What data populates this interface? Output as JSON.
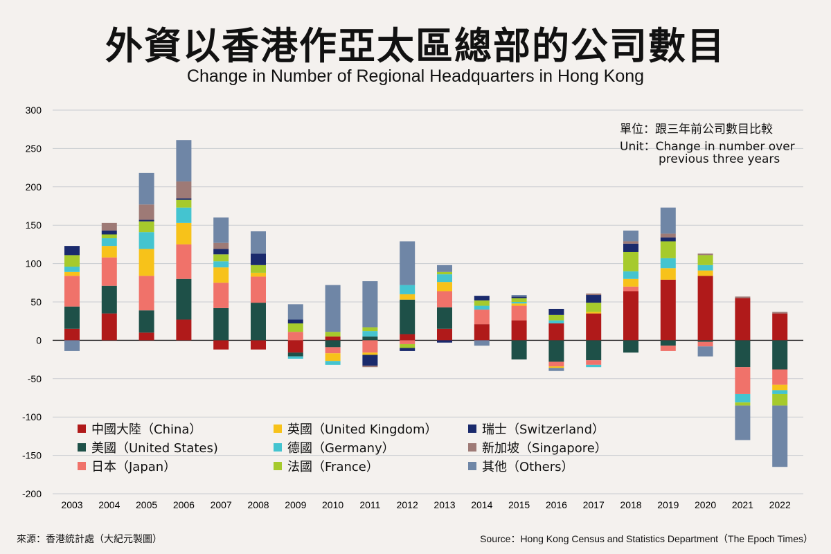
{
  "title": "外資以香港作亞太區總部的公司數目",
  "subtitle": "Change in Number of Regional Headquarters in Hong Kong",
  "unit_note": {
    "line1": "單位：跟三年前公司數目比較",
    "line2": "Unit：Change in number over",
    "line3": "previous three years"
  },
  "footer": {
    "left": "來源：香港統計處（大紀元製圖）",
    "right": "Source：Hong Kong Census and Statistics Department（The Epoch Times）"
  },
  "colors": {
    "China": "#b01a1a",
    "United States": "#1e5048",
    "Japan": "#f0726a",
    "United Kingdom": "#f7c21a",
    "Germany": "#44c4d0",
    "France": "#a6ca2c",
    "Switzerland": "#1a2a6c",
    "Singapore": "#9e7a76",
    "Others": "#6f86a6"
  },
  "legend": [
    {
      "key": "China",
      "label": "中國大陸（China）"
    },
    {
      "key": "United Kingdom",
      "label": "英國（United Kingdom）"
    },
    {
      "key": "Switzerland",
      "label": "瑞士（Switzerland）"
    },
    {
      "key": "United States",
      "label": "美國（United States)"
    },
    {
      "key": "Germany",
      "label": "德國（Germany）"
    },
    {
      "key": "Singapore",
      "label": "新加坡（Singapore）"
    },
    {
      "key": "Japan",
      "label": "日本（Japan）"
    },
    {
      "key": "France",
      "label": "法國（France）"
    },
    {
      "key": "Others",
      "label": "其他（Others）"
    }
  ],
  "chart_data": {
    "type": "bar",
    "stacked": true,
    "ylim": [
      -200,
      300
    ],
    "yticks": [
      300,
      250,
      200,
      150,
      100,
      50,
      0,
      -50,
      -100,
      -150,
      -200
    ],
    "grid": true,
    "categories": [
      "2003",
      "2004",
      "2005",
      "2006",
      "2007",
      "2008",
      "2009",
      "2010",
      "2011",
      "2012",
      "2013",
      "2014",
      "2015",
      "2016",
      "2017",
      "2018",
      "2019",
      "2020",
      "2021",
      "2022"
    ],
    "series": [
      {
        "name": "China",
        "values": [
          15,
          35,
          10,
          27,
          -12,
          -12,
          -16,
          5,
          0,
          8,
          15,
          21,
          26,
          22,
          35,
          64,
          79,
          84,
          55,
          35
        ]
      },
      {
        "name": "United States",
        "values": [
          29,
          36,
          29,
          53,
          42,
          49,
          -5,
          -9,
          5,
          45,
          28,
          0,
          -25,
          -28,
          -26,
          -16,
          -7,
          -2,
          -35,
          -38
        ]
      },
      {
        "name": "Japan",
        "values": [
          40,
          37,
          45,
          45,
          33,
          34,
          11,
          -8,
          -16,
          -5,
          21,
          19,
          19,
          -6,
          -6,
          6,
          -7,
          -6,
          -35,
          -20
        ]
      },
      {
        "name": "United Kingdom",
        "values": [
          5,
          15,
          35,
          28,
          20,
          5,
          0,
          -10,
          -3,
          7,
          12,
          0,
          3,
          -2,
          2,
          10,
          15,
          7,
          0,
          -7
        ]
      },
      {
        "name": "Germany",
        "values": [
          7,
          10,
          22,
          20,
          8,
          0,
          -3,
          -5,
          7,
          12,
          10,
          5,
          2,
          4,
          -3,
          10,
          13,
          7,
          -11,
          -5
        ]
      },
      {
        "name": "France",
        "values": [
          15,
          5,
          14,
          10,
          9,
          10,
          11,
          6,
          5,
          -5,
          3,
          7,
          5,
          7,
          12,
          25,
          22,
          13,
          -4,
          -15
        ]
      },
      {
        "name": "Switzerland",
        "values": [
          12,
          5,
          2,
          2,
          7,
          15,
          5,
          0,
          -14,
          -4,
          -3,
          6,
          2,
          8,
          10,
          11,
          5,
          0,
          0,
          0
        ]
      },
      {
        "name": "Singapore",
        "values": [
          0,
          10,
          20,
          22,
          8,
          0,
          0,
          0,
          -2,
          0,
          0,
          0,
          0,
          0,
          2,
          3,
          5,
          2,
          2,
          2
        ]
      },
      {
        "name": "Others",
        "values": [
          -14,
          0,
          41,
          54,
          33,
          29,
          20,
          61,
          60,
          57,
          9,
          -7,
          2,
          -4,
          0,
          14,
          34,
          -13,
          -45,
          -80
        ]
      }
    ]
  }
}
